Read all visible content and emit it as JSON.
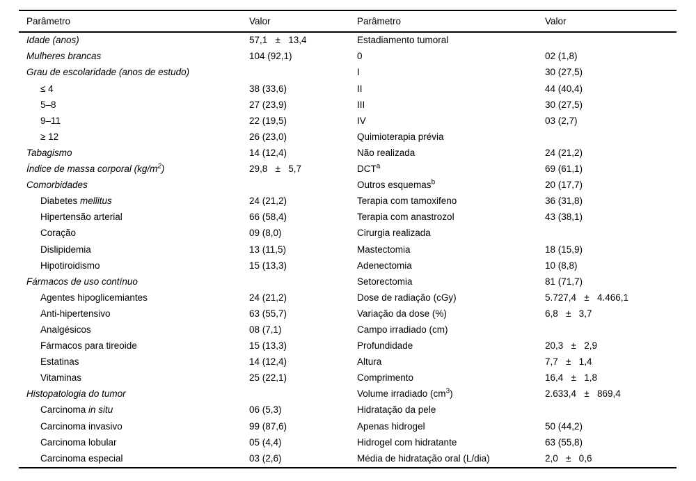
{
  "meta": {
    "background_color": "#ffffff",
    "text_color": "#000000",
    "rule_color": "#000000"
  },
  "table": {
    "header": [
      "Parâmetro",
      "Valor",
      "Parâmetro",
      "Valor"
    ],
    "rows": [
      {
        "left": {
          "runs": [
            {
              "t": "Idade (anos)",
              "i": true
            }
          ],
          "indent": false,
          "value": "57,1   ±   13,4"
        },
        "right": {
          "runs": [
            {
              "t": "Estadiamento tumoral"
            }
          ],
          "value": ""
        }
      },
      {
        "left": {
          "runs": [
            {
              "t": "Mulheres brancas",
              "i": true
            }
          ],
          "indent": false,
          "value": "104 (92,1)"
        },
        "right": {
          "runs": [
            {
              "t": "0"
            }
          ],
          "value": "02 (1,8)"
        }
      },
      {
        "left": {
          "runs": [
            {
              "t": "Grau de escolaridade (anos de estudo)",
              "i": true
            }
          ],
          "indent": false,
          "value": ""
        },
        "right": {
          "runs": [
            {
              "t": "I"
            }
          ],
          "value": "30 (27,5)"
        }
      },
      {
        "left": {
          "runs": [
            {
              "t": "≤ 4"
            }
          ],
          "indent": true,
          "value": "38 (33,6)"
        },
        "right": {
          "runs": [
            {
              "t": "II"
            }
          ],
          "value": "44 (40,4)"
        }
      },
      {
        "left": {
          "runs": [
            {
              "t": "5–8"
            }
          ],
          "indent": true,
          "value": "27 (23,9)"
        },
        "right": {
          "runs": [
            {
              "t": "III"
            }
          ],
          "value": "30 (27,5)"
        }
      },
      {
        "left": {
          "runs": [
            {
              "t": "9–11"
            }
          ],
          "indent": true,
          "value": "22 (19,5)"
        },
        "right": {
          "runs": [
            {
              "t": "IV"
            }
          ],
          "value": "03 (2,7)"
        }
      },
      {
        "left": {
          "runs": [
            {
              "t": "≥ 12"
            }
          ],
          "indent": true,
          "value": "26 (23,0)"
        },
        "right": {
          "runs": [
            {
              "t": "Quimioterapia prévia"
            }
          ],
          "value": ""
        }
      },
      {
        "left": {
          "runs": [
            {
              "t": "Tabagismo",
              "i": true
            }
          ],
          "indent": false,
          "value": "14 (12,4)"
        },
        "right": {
          "runs": [
            {
              "t": "Não realizada"
            }
          ],
          "value": "24 (21,2)"
        }
      },
      {
        "left": {
          "runs": [
            {
              "t": "Índice de massa corporal (kg/m",
              "i": true
            },
            {
              "t": "2",
              "i": true,
              "sup": true
            },
            {
              "t": ")",
              "i": true
            }
          ],
          "indent": false,
          "value": "29,8   ±   5,7"
        },
        "right": {
          "runs": [
            {
              "t": "DCT"
            },
            {
              "t": "a",
              "sup": true
            }
          ],
          "value": "69 (61,1)"
        }
      },
      {
        "left": {
          "runs": [
            {
              "t": "Comorbidades",
              "i": true
            }
          ],
          "indent": false,
          "value": ""
        },
        "right": {
          "runs": [
            {
              "t": "Outros esquemas"
            },
            {
              "t": "b",
              "sup": true
            }
          ],
          "value": "20 (17,7)"
        }
      },
      {
        "left": {
          "runs": [
            {
              "t": "Diabetes "
            },
            {
              "t": "mellitus",
              "i": true
            }
          ],
          "indent": true,
          "value": "24 (21,2)"
        },
        "right": {
          "runs": [
            {
              "t": "Terapia com tamoxifeno"
            }
          ],
          "value": "36 (31,8)"
        }
      },
      {
        "left": {
          "runs": [
            {
              "t": "Hipertensão arterial"
            }
          ],
          "indent": true,
          "value": "66 (58,4)"
        },
        "right": {
          "runs": [
            {
              "t": "Terapia com anastrozol"
            }
          ],
          "value": "43 (38,1)"
        }
      },
      {
        "left": {
          "runs": [
            {
              "t": "Coração"
            }
          ],
          "indent": true,
          "value": "09 (8,0)"
        },
        "right": {
          "runs": [
            {
              "t": "Cirurgia realizada"
            }
          ],
          "value": ""
        }
      },
      {
        "left": {
          "runs": [
            {
              "t": "Dislipidemia"
            }
          ],
          "indent": true,
          "value": "13 (11,5)"
        },
        "right": {
          "runs": [
            {
              "t": "Mastectomia"
            }
          ],
          "value": "18 (15,9)"
        }
      },
      {
        "left": {
          "runs": [
            {
              "t": "Hipotiroidismo"
            }
          ],
          "indent": true,
          "value": "15 (13,3)"
        },
        "right": {
          "runs": [
            {
              "t": "Adenectomia"
            }
          ],
          "value": "10 (8,8)"
        }
      },
      {
        "left": {
          "runs": [
            {
              "t": "Fármacos de uso contínuo",
              "i": true
            }
          ],
          "indent": false,
          "value": ""
        },
        "right": {
          "runs": [
            {
              "t": "Setorectomia"
            }
          ],
          "value": "81 (71,7)"
        }
      },
      {
        "left": {
          "runs": [
            {
              "t": "Agentes hipoglicemiantes"
            }
          ],
          "indent": true,
          "value": "24 (21,2)"
        },
        "right": {
          "runs": [
            {
              "t": "Dose de radiação (cGy)"
            }
          ],
          "value": "5.727,4   ±   4.466,1"
        }
      },
      {
        "left": {
          "runs": [
            {
              "t": "Anti-hipertensivo"
            }
          ],
          "indent": true,
          "value": "63 (55,7)"
        },
        "right": {
          "runs": [
            {
              "t": "Variação da dose (%)"
            }
          ],
          "value": "6,8   ±   3,7"
        }
      },
      {
        "left": {
          "runs": [
            {
              "t": "Analgésicos"
            }
          ],
          "indent": true,
          "value": "08 (7,1)"
        },
        "right": {
          "runs": [
            {
              "t": "Campo irradiado (cm)"
            }
          ],
          "value": ""
        }
      },
      {
        "left": {
          "runs": [
            {
              "t": "Fármacos para tireoide"
            }
          ],
          "indent": true,
          "value": "15 (13,3)"
        },
        "right": {
          "runs": [
            {
              "t": "Profundidade"
            }
          ],
          "value": "20,3   ±   2,9"
        }
      },
      {
        "left": {
          "runs": [
            {
              "t": "Estatinas"
            }
          ],
          "indent": true,
          "value": "14 (12,4)"
        },
        "right": {
          "runs": [
            {
              "t": "Altura"
            }
          ],
          "value": "7,7   ±   1,4"
        }
      },
      {
        "left": {
          "runs": [
            {
              "t": "Vitaminas"
            }
          ],
          "indent": true,
          "value": "25 (22,1)"
        },
        "right": {
          "runs": [
            {
              "t": "Comprimento"
            }
          ],
          "value": "16,4   ±   1,8"
        }
      },
      {
        "left": {
          "runs": [
            {
              "t": "Histopatologia do tumor",
              "i": true
            }
          ],
          "indent": false,
          "value": ""
        },
        "right": {
          "runs": [
            {
              "t": "Volume irradiado (cm"
            },
            {
              "t": "3",
              "sup": true
            },
            {
              "t": ")"
            }
          ],
          "value": "2.633,4   ±   869,4"
        }
      },
      {
        "left": {
          "runs": [
            {
              "t": "Carcinoma "
            },
            {
              "t": "in situ",
              "i": true
            }
          ],
          "indent": true,
          "value": "06 (5,3)"
        },
        "right": {
          "runs": [
            {
              "t": "Hidratação da pele"
            }
          ],
          "value": ""
        }
      },
      {
        "left": {
          "runs": [
            {
              "t": "Carcinoma invasivo"
            }
          ],
          "indent": true,
          "value": "99 (87,6)"
        },
        "right": {
          "runs": [
            {
              "t": "Apenas hidrogel"
            }
          ],
          "value": "50 (44,2)"
        }
      },
      {
        "left": {
          "runs": [
            {
              "t": "Carcinoma lobular"
            }
          ],
          "indent": true,
          "value": "05 (4,4)"
        },
        "right": {
          "runs": [
            {
              "t": "Hidrogel com hidratante"
            }
          ],
          "value": "63 (55,8)"
        }
      },
      {
        "left": {
          "runs": [
            {
              "t": "Carcinoma especial"
            }
          ],
          "indent": true,
          "value": "03 (2,6)"
        },
        "right": {
          "runs": [
            {
              "t": "Média de hidratação oral (L/dia)"
            }
          ],
          "value": "2,0   ±   0,6"
        }
      }
    ]
  }
}
